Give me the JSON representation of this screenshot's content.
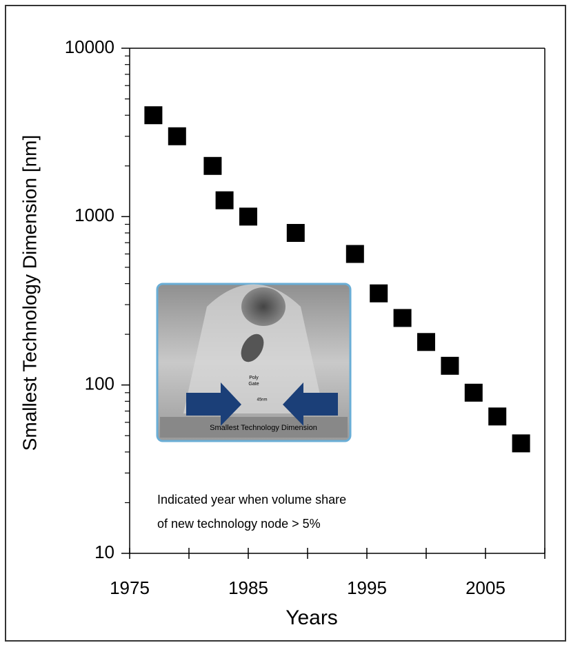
{
  "chart_data": {
    "type": "scatter",
    "xlabel": "Years",
    "ylabel": "Smallest Technology Dimension [nm]",
    "x": [
      1977,
      1979,
      1982,
      1983,
      1985,
      1989,
      1994,
      1996,
      1998,
      2000,
      2002,
      2004,
      2006,
      2008
    ],
    "values": [
      4000,
      3000,
      2000,
      1250,
      1000,
      800,
      600,
      350,
      250,
      180,
      130,
      90,
      65,
      45
    ],
    "color": "#000000",
    "xlim": [
      1975,
      2010
    ],
    "xticks": [
      1975,
      1985,
      1995,
      2005
    ],
    "xminorticks": [
      1980,
      1990,
      2000,
      2010
    ],
    "ylim": [
      10,
      10000
    ],
    "yscale": "log",
    "yticks": [
      10,
      100,
      1000,
      10000
    ],
    "yminorticks": [
      20,
      30,
      40,
      50,
      60,
      70,
      80,
      90,
      200,
      300,
      400,
      500,
      600,
      700,
      800,
      900,
      2000,
      3000,
      4000,
      5000,
      6000,
      7000,
      8000,
      9000
    ],
    "annotation": [
      "Indicated year when volume share",
      "of new technology node > 5%"
    ],
    "inset_labels": [
      "Poly",
      "Gate",
      "45nm",
      "Smallest Technology Dimension"
    ]
  }
}
